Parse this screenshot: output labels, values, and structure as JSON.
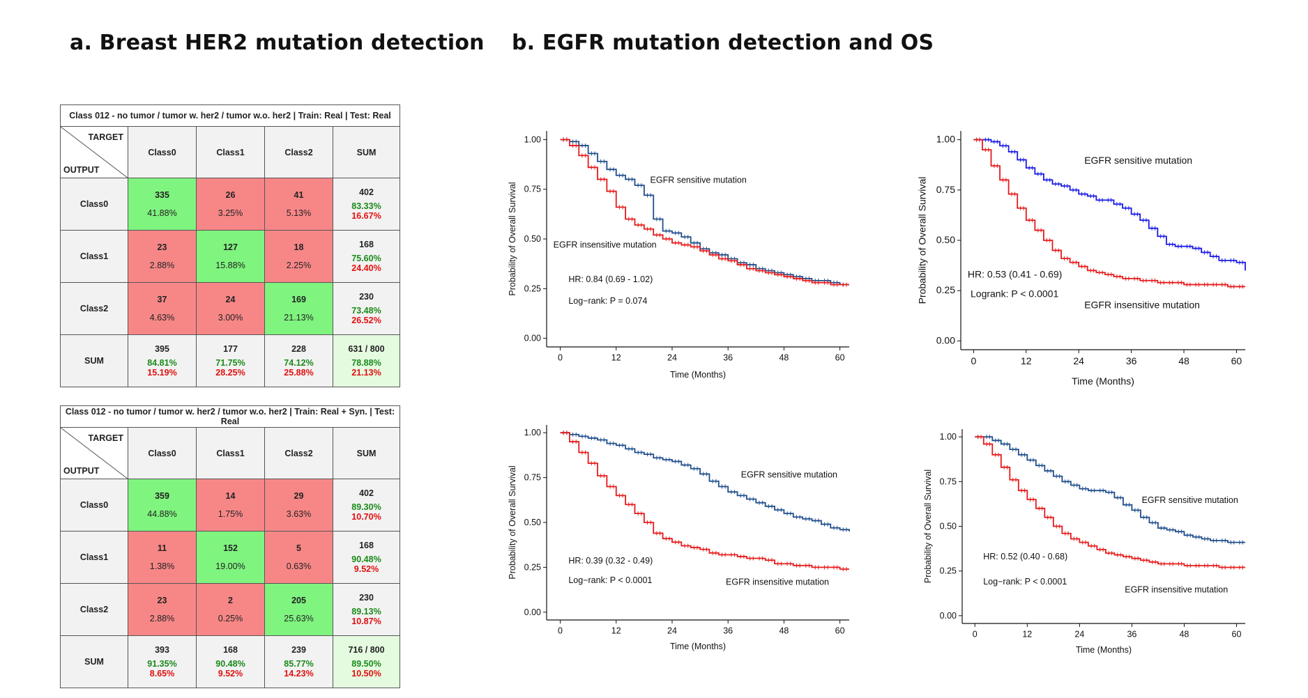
{
  "titles": {
    "a": "a. Breast HER2 mutation detection",
    "b": "b. EGFR mutation detection and OS"
  },
  "matrices": [
    {
      "caption": "Class 012 - no tumor / tumor w. her2 / tumor w.o. her2 | Train: Real | Test: Real",
      "target_label": "TARGET",
      "output_label": "OUTPUT",
      "columns": [
        "Class0",
        "Class1",
        "Class2",
        "SUM"
      ],
      "rows": [
        {
          "label": "Class0",
          "cells": [
            {
              "n": "335",
              "p": "41.88%"
            },
            {
              "n": "26",
              "p": "3.25%"
            },
            {
              "n": "41",
              "p": "5.13%"
            }
          ],
          "sum": {
            "n": "402",
            "good": "83.33%",
            "bad": "16.67%"
          }
        },
        {
          "label": "Class1",
          "cells": [
            {
              "n": "23",
              "p": "2.88%"
            },
            {
              "n": "127",
              "p": "15.88%"
            },
            {
              "n": "18",
              "p": "2.25%"
            }
          ],
          "sum": {
            "n": "168",
            "good": "75.60%",
            "bad": "24.40%"
          }
        },
        {
          "label": "Class2",
          "cells": [
            {
              "n": "37",
              "p": "4.63%"
            },
            {
              "n": "24",
              "p": "3.00%"
            },
            {
              "n": "169",
              "p": "21.13%"
            }
          ],
          "sum": {
            "n": "230",
            "good": "73.48%",
            "bad": "26.52%"
          }
        }
      ],
      "sum_row": {
        "label": "SUM",
        "cells": [
          {
            "n": "395",
            "good": "84.81%",
            "bad": "15.19%"
          },
          {
            "n": "177",
            "good": "71.75%",
            "bad": "28.25%"
          },
          {
            "n": "228",
            "good": "74.12%",
            "bad": "25.88%"
          }
        ],
        "total": {
          "n": "631 / 800",
          "good": "78.88%",
          "bad": "21.13%"
        }
      }
    },
    {
      "caption": "Class 012 - no tumor / tumor w. her2 / tumor w.o. her2 | Train: Real + Syn. | Test: Real",
      "target_label": "TARGET",
      "output_label": "OUTPUT",
      "columns": [
        "Class0",
        "Class1",
        "Class2",
        "SUM"
      ],
      "rows": [
        {
          "label": "Class0",
          "cells": [
            {
              "n": "359",
              "p": "44.88%"
            },
            {
              "n": "14",
              "p": "1.75%"
            },
            {
              "n": "29",
              "p": "3.63%"
            }
          ],
          "sum": {
            "n": "402",
            "good": "89.30%",
            "bad": "10.70%"
          }
        },
        {
          "label": "Class1",
          "cells": [
            {
              "n": "11",
              "p": "1.38%"
            },
            {
              "n": "152",
              "p": "19.00%"
            },
            {
              "n": "5",
              "p": "0.63%"
            }
          ],
          "sum": {
            "n": "168",
            "good": "90.48%",
            "bad": "9.52%"
          }
        },
        {
          "label": "Class2",
          "cells": [
            {
              "n": "23",
              "p": "2.88%"
            },
            {
              "n": "2",
              "p": "0.25%"
            },
            {
              "n": "205",
              "p": "25.63%"
            }
          ],
          "sum": {
            "n": "230",
            "good": "89.13%",
            "bad": "10.87%"
          }
        }
      ],
      "sum_row": {
        "label": "SUM",
        "cells": [
          {
            "n": "393",
            "good": "91.35%",
            "bad": "8.65%"
          },
          {
            "n": "168",
            "good": "90.48%",
            "bad": "9.52%"
          },
          {
            "n": "239",
            "good": "85.77%",
            "bad": "14.23%"
          }
        ],
        "total": {
          "n": "716 / 800",
          "good": "89.50%",
          "bad": "10.50%"
        }
      }
    }
  ],
  "colors": {
    "sensitive_a": "#1f4e8c",
    "sensitive_b": "#1a1ae6",
    "insensitive": "#e61a1a",
    "correct_cell": "#7ff47f",
    "wrong_cell": "#f78787"
  },
  "chart_data": [
    {
      "type": "line",
      "xlabel": "Time (Months)",
      "ylabel": "Probability of Overall Survival",
      "xlim": [
        0,
        62
      ],
      "ylim": [
        0,
        1
      ],
      "xticks": [
        "0",
        "12",
        "24",
        "36",
        "48",
        "60"
      ],
      "yticks": [
        "0.00",
        "0.25",
        "0.50",
        "0.75",
        "1.00"
      ],
      "annotations": [
        "HR: 0.84 (0.69 - 1.02)",
        "Log−rank: P = 0.074"
      ],
      "series": [
        {
          "name": "EGFR sensitive mutation",
          "color": "#1f4e8c",
          "x": [
            0,
            2,
            4,
            6,
            8,
            10,
            12,
            14,
            16,
            18,
            20,
            22,
            24,
            26,
            28,
            30,
            32,
            34,
            36,
            38,
            40,
            42,
            44,
            46,
            48,
            50,
            52,
            54,
            56,
            58,
            60,
            62
          ],
          "y": [
            1.0,
            0.99,
            0.97,
            0.93,
            0.89,
            0.85,
            0.82,
            0.8,
            0.77,
            0.72,
            0.6,
            0.54,
            0.53,
            0.51,
            0.48,
            0.45,
            0.43,
            0.42,
            0.4,
            0.38,
            0.37,
            0.35,
            0.34,
            0.33,
            0.32,
            0.31,
            0.3,
            0.29,
            0.29,
            0.28,
            0.27,
            0.27
          ]
        },
        {
          "name": "EGFR insensitive mutation",
          "color": "#e61a1a",
          "x": [
            0,
            2,
            4,
            6,
            8,
            10,
            12,
            14,
            16,
            18,
            20,
            22,
            24,
            26,
            28,
            30,
            32,
            34,
            36,
            38,
            40,
            42,
            44,
            46,
            48,
            50,
            52,
            54,
            56,
            58,
            60,
            62
          ],
          "y": [
            1.0,
            0.97,
            0.92,
            0.86,
            0.8,
            0.74,
            0.66,
            0.6,
            0.57,
            0.55,
            0.52,
            0.5,
            0.48,
            0.47,
            0.46,
            0.44,
            0.42,
            0.4,
            0.39,
            0.37,
            0.35,
            0.34,
            0.33,
            0.32,
            0.31,
            0.3,
            0.29,
            0.28,
            0.28,
            0.27,
            0.27,
            0.27
          ]
        }
      ],
      "labels": [
        "EGFR sensitive mutation",
        "EGFR insensitive mutation"
      ]
    },
    {
      "type": "line",
      "xlabel": "Time (Months)",
      "ylabel": "Probability of Overall Survival",
      "xlim": [
        0,
        62
      ],
      "ylim": [
        0,
        1
      ],
      "xticks": [
        "0",
        "12",
        "24",
        "36",
        "48",
        "60"
      ],
      "yticks": [
        "0.00",
        "0.25",
        "0.50",
        "0.75",
        "1.00"
      ],
      "annotations": [
        "HR: 0.53 (0.41 - 0.69)",
        "Logrank: P < 0.0001"
      ],
      "series": [
        {
          "name": "EGFR sensitive mutation",
          "color": "#1a1ae6",
          "x": [
            0,
            2,
            4,
            6,
            8,
            10,
            12,
            14,
            16,
            18,
            20,
            22,
            24,
            26,
            28,
            30,
            32,
            34,
            36,
            38,
            40,
            42,
            44,
            46,
            48,
            50,
            52,
            54,
            56,
            58,
            60,
            62
          ],
          "y": [
            1.0,
            1.0,
            0.99,
            0.97,
            0.94,
            0.9,
            0.86,
            0.83,
            0.8,
            0.78,
            0.77,
            0.75,
            0.73,
            0.72,
            0.7,
            0.7,
            0.68,
            0.66,
            0.63,
            0.6,
            0.56,
            0.52,
            0.48,
            0.47,
            0.47,
            0.46,
            0.44,
            0.42,
            0.4,
            0.4,
            0.39,
            0.35
          ]
        },
        {
          "name": "EGFR insensitive mutation",
          "color": "#e61a1a",
          "x": [
            0,
            2,
            4,
            6,
            8,
            10,
            12,
            14,
            16,
            18,
            20,
            22,
            24,
            26,
            28,
            30,
            32,
            34,
            36,
            38,
            40,
            42,
            44,
            46,
            48,
            50,
            52,
            54,
            56,
            58,
            60,
            62
          ],
          "y": [
            1.0,
            0.95,
            0.87,
            0.8,
            0.73,
            0.66,
            0.6,
            0.55,
            0.5,
            0.45,
            0.41,
            0.39,
            0.37,
            0.35,
            0.34,
            0.33,
            0.32,
            0.31,
            0.31,
            0.3,
            0.3,
            0.29,
            0.29,
            0.29,
            0.28,
            0.28,
            0.28,
            0.28,
            0.28,
            0.27,
            0.27,
            0.27
          ]
        }
      ],
      "labels": [
        "EGFR sensitive mutation",
        "EGFR insensitive mutation"
      ]
    },
    {
      "type": "line",
      "xlabel": "Time (Months)",
      "ylabel": "Probability of Overall Survival",
      "xlim": [
        0,
        62
      ],
      "ylim": [
        0,
        1
      ],
      "xticks": [
        "0",
        "12",
        "24",
        "36",
        "48",
        "60"
      ],
      "yticks": [
        "0.00",
        "0.25",
        "0.50",
        "0.75",
        "1.00"
      ],
      "annotations": [
        "HR: 0.39 (0.32 - 0.49)",
        "Log−rank: P < 0.0001"
      ],
      "series": [
        {
          "name": "EGFR sensitive mutation",
          "color": "#1f4e8c",
          "x": [
            0,
            2,
            4,
            6,
            8,
            10,
            12,
            14,
            16,
            18,
            20,
            22,
            24,
            26,
            28,
            30,
            32,
            34,
            36,
            38,
            40,
            42,
            44,
            46,
            48,
            50,
            52,
            54,
            56,
            58,
            60,
            62
          ],
          "y": [
            1.0,
            0.99,
            0.98,
            0.97,
            0.96,
            0.94,
            0.93,
            0.91,
            0.89,
            0.88,
            0.86,
            0.85,
            0.84,
            0.82,
            0.8,
            0.77,
            0.73,
            0.7,
            0.67,
            0.65,
            0.63,
            0.61,
            0.59,
            0.57,
            0.55,
            0.53,
            0.52,
            0.51,
            0.49,
            0.47,
            0.46,
            0.45
          ]
        },
        {
          "name": "EGFR insensitive mutation",
          "color": "#e61a1a",
          "x": [
            0,
            2,
            4,
            6,
            8,
            10,
            12,
            14,
            16,
            18,
            20,
            22,
            24,
            26,
            28,
            30,
            32,
            34,
            36,
            38,
            40,
            42,
            44,
            46,
            48,
            50,
            52,
            54,
            56,
            58,
            60,
            62
          ],
          "y": [
            1.0,
            0.95,
            0.89,
            0.83,
            0.76,
            0.7,
            0.65,
            0.6,
            0.55,
            0.5,
            0.44,
            0.41,
            0.39,
            0.37,
            0.36,
            0.35,
            0.33,
            0.32,
            0.32,
            0.31,
            0.3,
            0.3,
            0.29,
            0.27,
            0.27,
            0.26,
            0.26,
            0.25,
            0.25,
            0.25,
            0.24,
            0.24
          ]
        }
      ],
      "labels": [
        "EGFR sensitive mutation",
        "EGFR insensitive mutation"
      ]
    },
    {
      "type": "line",
      "xlabel": "Time (Months)",
      "ylabel": "Probability of Overall Survival",
      "xlim": [
        0,
        62
      ],
      "ylim": [
        0,
        1
      ],
      "xticks": [
        "0",
        "12",
        "24",
        "36",
        "48",
        "60"
      ],
      "yticks": [
        "0.00",
        "0.25",
        "0.50",
        "0.75",
        "1.00"
      ],
      "annotations": [
        "HR: 0.52 (0.40 - 0.68)",
        "Log−rank: P < 0.0001"
      ],
      "series": [
        {
          "name": "EGFR sensitive mutation",
          "color": "#1f4e8c",
          "x": [
            0,
            2,
            4,
            6,
            8,
            10,
            12,
            14,
            16,
            18,
            20,
            22,
            24,
            26,
            28,
            30,
            32,
            34,
            36,
            38,
            40,
            42,
            44,
            46,
            48,
            50,
            52,
            54,
            56,
            58,
            60,
            62
          ],
          "y": [
            1.0,
            1.0,
            0.98,
            0.96,
            0.93,
            0.9,
            0.87,
            0.84,
            0.81,
            0.78,
            0.75,
            0.73,
            0.71,
            0.7,
            0.7,
            0.69,
            0.66,
            0.62,
            0.59,
            0.55,
            0.52,
            0.49,
            0.48,
            0.47,
            0.45,
            0.44,
            0.43,
            0.42,
            0.42,
            0.41,
            0.41,
            0.41
          ]
        },
        {
          "name": "EGFR insensitive mutation",
          "color": "#e61a1a",
          "x": [
            0,
            2,
            4,
            6,
            8,
            10,
            12,
            14,
            16,
            18,
            20,
            22,
            24,
            26,
            28,
            30,
            32,
            34,
            36,
            38,
            40,
            42,
            44,
            46,
            48,
            50,
            52,
            54,
            56,
            58,
            60,
            62
          ],
          "y": [
            1.0,
            0.96,
            0.9,
            0.83,
            0.76,
            0.7,
            0.65,
            0.6,
            0.55,
            0.5,
            0.46,
            0.43,
            0.41,
            0.39,
            0.37,
            0.35,
            0.34,
            0.33,
            0.32,
            0.31,
            0.3,
            0.29,
            0.29,
            0.29,
            0.28,
            0.28,
            0.28,
            0.28,
            0.27,
            0.27,
            0.27,
            0.27
          ]
        }
      ],
      "labels": [
        "EGFR sensitive mutation",
        "EGFR insensitive mutation"
      ]
    }
  ]
}
